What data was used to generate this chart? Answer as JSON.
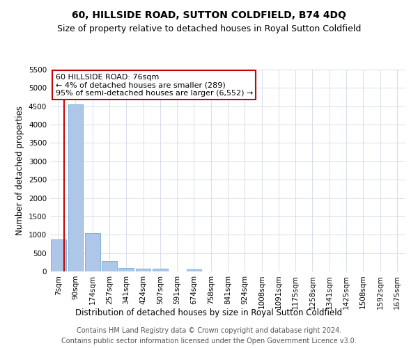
{
  "title": "60, HILLSIDE ROAD, SUTTON COLDFIELD, B74 4DQ",
  "subtitle": "Size of property relative to detached houses in Royal Sutton Coldfield",
  "xlabel": "Distribution of detached houses by size in Royal Sutton Coldfield",
  "ylabel": "Number of detached properties",
  "footer_line1": "Contains HM Land Registry data © Crown copyright and database right 2024.",
  "footer_line2": "Contains public sector information licensed under the Open Government Licence v3.0.",
  "annotation_title": "60 HILLSIDE ROAD: 76sqm",
  "annotation_line1": "← 4% of detached houses are smaller (289)",
  "annotation_line2": "95% of semi-detached houses are larger (6,552) →",
  "categories": [
    "7sqm",
    "90sqm",
    "174sqm",
    "257sqm",
    "341sqm",
    "424sqm",
    "507sqm",
    "591sqm",
    "674sqm",
    "758sqm",
    "841sqm",
    "924sqm",
    "1008sqm",
    "1091sqm",
    "1175sqm",
    "1258sqm",
    "1341sqm",
    "1425sqm",
    "1508sqm",
    "1592sqm",
    "1675sqm"
  ],
  "values": [
    875,
    4550,
    1050,
    290,
    90,
    80,
    75,
    0,
    55,
    0,
    0,
    0,
    0,
    0,
    0,
    0,
    0,
    0,
    0,
    0,
    0
  ],
  "bar_color": "#aec6e8",
  "bar_edge_color": "#5a9fd4",
  "vline_color": "#cc0000",
  "annotation_box_color": "#ffffff",
  "annotation_box_edge": "#cc0000",
  "ylim": [
    0,
    5500
  ],
  "yticks": [
    0,
    500,
    1000,
    1500,
    2000,
    2500,
    3000,
    3500,
    4000,
    4500,
    5000,
    5500
  ],
  "background_color": "#ffffff",
  "grid_color": "#d0d8e8",
  "title_fontsize": 10,
  "subtitle_fontsize": 9,
  "axis_label_fontsize": 8.5,
  "tick_fontsize": 7.5,
  "footer_fontsize": 7,
  "annotation_fontsize": 8
}
